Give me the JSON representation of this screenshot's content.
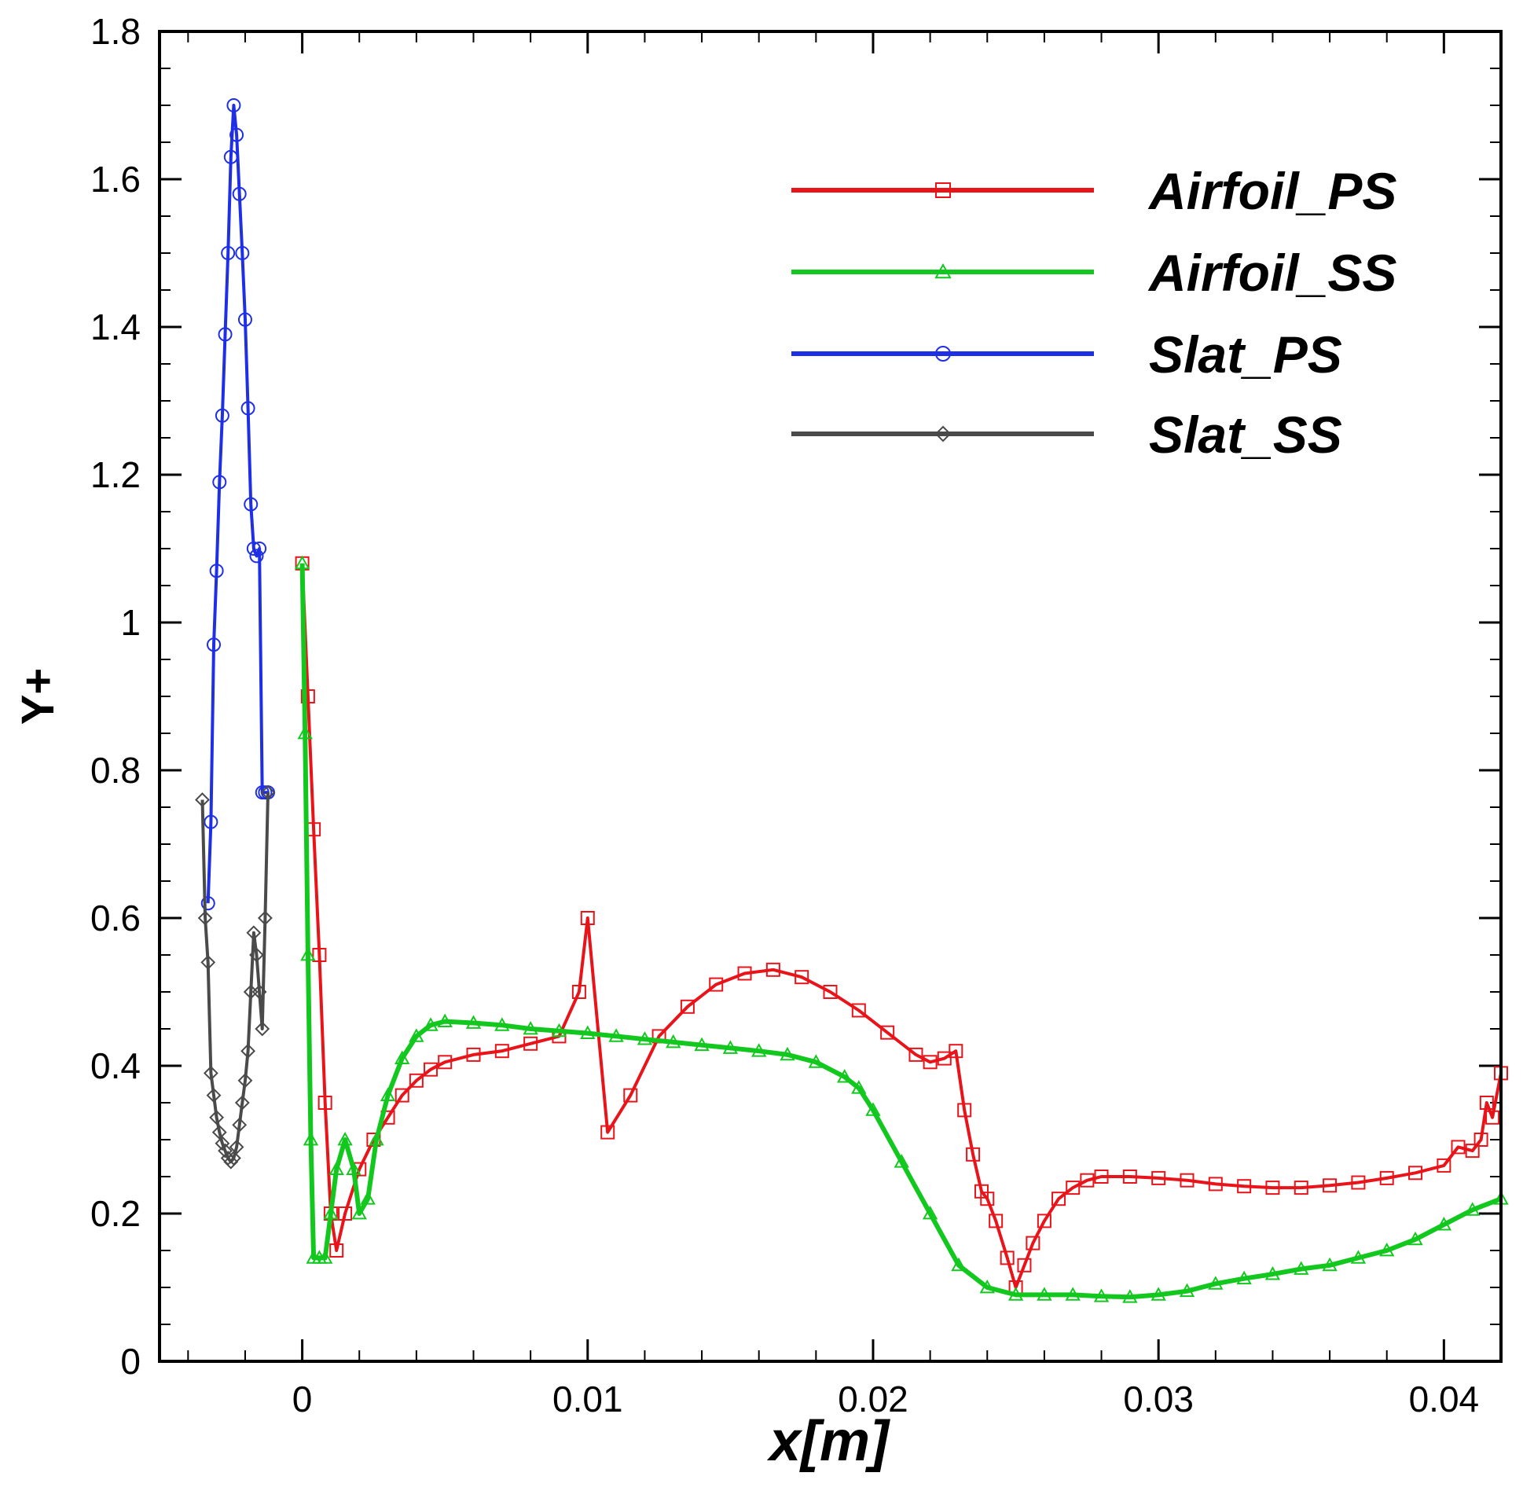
{
  "chart_data": {
    "type": "line",
    "title": "",
    "xlabel": "x[m]",
    "ylabel": "Y+",
    "xlim": [
      -0.005,
      0.042
    ],
    "ylim": [
      0,
      1.8
    ],
    "grid": false,
    "legend_position": "top-right",
    "x_ticks": [
      0,
      0.01,
      0.02,
      0.03,
      0.04
    ],
    "x_tick_labels": [
      "0",
      "0.01",
      "0.02",
      "0.03",
      "0.04"
    ],
    "y_ticks": [
      0,
      0.2,
      0.4,
      0.6,
      0.8,
      1,
      1.2,
      1.4,
      1.6,
      1.8
    ],
    "y_tick_labels": [
      "0",
      "0.2",
      "0.4",
      "0.6",
      "0.8",
      "1",
      "1.2",
      "1.4",
      "1.6",
      "1.8"
    ],
    "series": [
      {
        "name": "Airfoil_PS",
        "color": "#e8141a",
        "marker": "square",
        "x": [
          0,
          0.0002,
          0.0004,
          0.0006,
          0.0008,
          0.001,
          0.0012,
          0.0015,
          0.002,
          0.0025,
          0.003,
          0.0035,
          0.004,
          0.0045,
          0.005,
          0.006,
          0.007,
          0.008,
          0.009,
          0.0097,
          0.01,
          0.0107,
          0.0115,
          0.0125,
          0.0135,
          0.0145,
          0.0155,
          0.0165,
          0.0175,
          0.0185,
          0.0195,
          0.0205,
          0.0215,
          0.022,
          0.0225,
          0.0229,
          0.0232,
          0.0235,
          0.0238,
          0.024,
          0.0243,
          0.0247,
          0.025,
          0.0253,
          0.0256,
          0.026,
          0.0265,
          0.027,
          0.0275,
          0.028,
          0.029,
          0.03,
          0.031,
          0.032,
          0.033,
          0.034,
          0.035,
          0.036,
          0.037,
          0.038,
          0.039,
          0.04,
          0.0405,
          0.041,
          0.0413,
          0.0415,
          0.0417,
          0.042
        ],
        "values": [
          1.08,
          0.9,
          0.72,
          0.55,
          0.35,
          0.2,
          0.15,
          0.2,
          0.26,
          0.3,
          0.33,
          0.36,
          0.38,
          0.395,
          0.405,
          0.415,
          0.42,
          0.43,
          0.44,
          0.5,
          0.6,
          0.31,
          0.36,
          0.44,
          0.48,
          0.51,
          0.525,
          0.53,
          0.52,
          0.5,
          0.475,
          0.445,
          0.415,
          0.405,
          0.41,
          0.42,
          0.34,
          0.28,
          0.23,
          0.22,
          0.19,
          0.14,
          0.1,
          0.13,
          0.16,
          0.19,
          0.22,
          0.235,
          0.245,
          0.25,
          0.25,
          0.248,
          0.245,
          0.24,
          0.237,
          0.235,
          0.235,
          0.238,
          0.242,
          0.248,
          0.255,
          0.265,
          0.29,
          0.285,
          0.3,
          0.35,
          0.33,
          0.39
        ]
      },
      {
        "name": "Airfoil_SS",
        "color": "#12c81e",
        "marker": "triangle",
        "x": [
          0,
          0.0001,
          0.0002,
          0.0003,
          0.0004,
          0.0006,
          0.0008,
          0.001,
          0.0012,
          0.0015,
          0.0018,
          0.002,
          0.0023,
          0.0026,
          0.003,
          0.0035,
          0.004,
          0.0045,
          0.005,
          0.006,
          0.007,
          0.008,
          0.009,
          0.01,
          0.011,
          0.012,
          0.013,
          0.014,
          0.015,
          0.016,
          0.017,
          0.018,
          0.019,
          0.0195,
          0.02,
          0.021,
          0.022,
          0.023,
          0.024,
          0.025,
          0.026,
          0.027,
          0.028,
          0.029,
          0.03,
          0.031,
          0.032,
          0.033,
          0.034,
          0.035,
          0.036,
          0.037,
          0.038,
          0.039,
          0.04,
          0.041,
          0.042
        ],
        "values": [
          1.08,
          0.85,
          0.55,
          0.3,
          0.14,
          0.14,
          0.14,
          0.2,
          0.26,
          0.3,
          0.26,
          0.2,
          0.22,
          0.3,
          0.36,
          0.41,
          0.44,
          0.455,
          0.46,
          0.458,
          0.455,
          0.45,
          0.447,
          0.444,
          0.44,
          0.436,
          0.432,
          0.428,
          0.424,
          0.42,
          0.415,
          0.405,
          0.385,
          0.37,
          0.34,
          0.27,
          0.2,
          0.13,
          0.1,
          0.09,
          0.09,
          0.09,
          0.088,
          0.087,
          0.09,
          0.095,
          0.105,
          0.112,
          0.118,
          0.125,
          0.13,
          0.14,
          0.15,
          0.165,
          0.185,
          0.205,
          0.22
        ]
      },
      {
        "name": "Slat_PS",
        "color": "#1f2fe6",
        "marker": "circle",
        "x": [
          -0.0033,
          -0.0032,
          -0.0031,
          -0.003,
          -0.0029,
          -0.0028,
          -0.0027,
          -0.0026,
          -0.0025,
          -0.0024,
          -0.0023,
          -0.0022,
          -0.0021,
          -0.002,
          -0.0019,
          -0.0018,
          -0.0017,
          -0.0016,
          -0.0015,
          -0.0014,
          -0.0013,
          -0.0012
        ],
        "values": [
          0.62,
          0.73,
          0.97,
          1.07,
          1.19,
          1.28,
          1.39,
          1.5,
          1.63,
          1.7,
          1.66,
          1.58,
          1.5,
          1.41,
          1.29,
          1.16,
          1.1,
          1.09,
          1.1,
          0.77,
          0.77,
          0.77
        ]
      },
      {
        "name": "Slat_SS",
        "color": "#4a4a4a",
        "marker": "diamond",
        "x": [
          -0.0035,
          -0.0034,
          -0.0033,
          -0.0032,
          -0.0031,
          -0.003,
          -0.0029,
          -0.0028,
          -0.0027,
          -0.0026,
          -0.0025,
          -0.0024,
          -0.0023,
          -0.0022,
          -0.0021,
          -0.002,
          -0.0019,
          -0.0018,
          -0.0017,
          -0.0016,
          -0.0015,
          -0.0014,
          -0.0013,
          -0.0012
        ],
        "values": [
          0.76,
          0.6,
          0.54,
          0.39,
          0.36,
          0.33,
          0.31,
          0.295,
          0.285,
          0.275,
          0.27,
          0.275,
          0.29,
          0.32,
          0.35,
          0.38,
          0.42,
          0.5,
          0.58,
          0.55,
          0.5,
          0.45,
          0.6,
          0.77
        ]
      }
    ]
  }
}
